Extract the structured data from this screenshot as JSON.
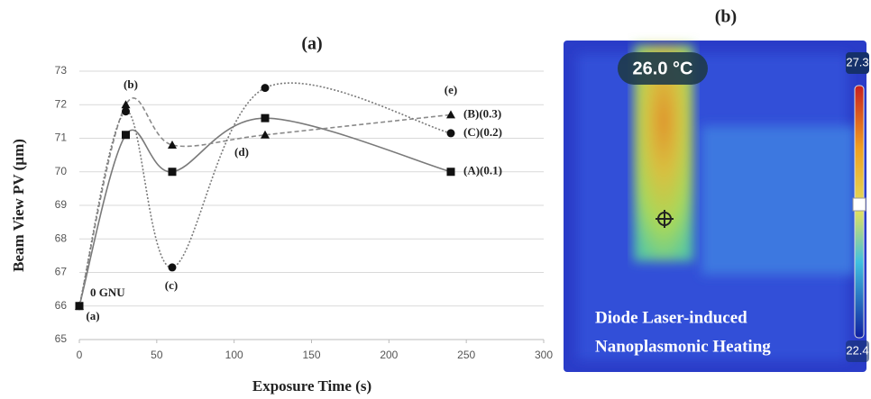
{
  "chart_data": {
    "type": "line",
    "title": "(a)",
    "x_label": "Exposure Time (s)",
    "y_label": "Beam View PV (µm)",
    "x": [
      0,
      30,
      60,
      120,
      240
    ],
    "series": [
      {
        "name": "(A)(0.1)",
        "color": "#7a7a7a",
        "dash": "solid",
        "marker": "square",
        "values": [
          66,
          71.1,
          70,
          71.6,
          70
        ]
      },
      {
        "name": "(B)(0.3)",
        "color": "#8a8a8a",
        "dash": "dashed",
        "marker": "triangle",
        "values": [
          66,
          72,
          70.8,
          71.1,
          71.7
        ]
      },
      {
        "name": "(C)(0.2)",
        "color": "#7a7a7a",
        "dash": "dotted",
        "marker": "circle",
        "values": [
          66,
          71.8,
          67.15,
          72.5,
          71.15
        ]
      }
    ],
    "annotations": [
      "(a)",
      "0 GNU",
      "(b)",
      "(c)",
      "(d)",
      "(e)"
    ],
    "xlim": [
      0,
      300
    ],
    "xticks": [
      0,
      50,
      100,
      150,
      200,
      250,
      300
    ],
    "ylim": [
      65,
      73
    ],
    "yticks": [
      65,
      66,
      67,
      68,
      69,
      70,
      71,
      72,
      73
    ],
    "grid": true
  },
  "thermal_image": {
    "title": "(b)",
    "spot_temperature": "26.0 °C",
    "scale_max": "27.3",
    "scale_min": "22.4",
    "caption": [
      "Diode Laser-induced",
      "Nanoplasmonic Heating"
    ]
  }
}
